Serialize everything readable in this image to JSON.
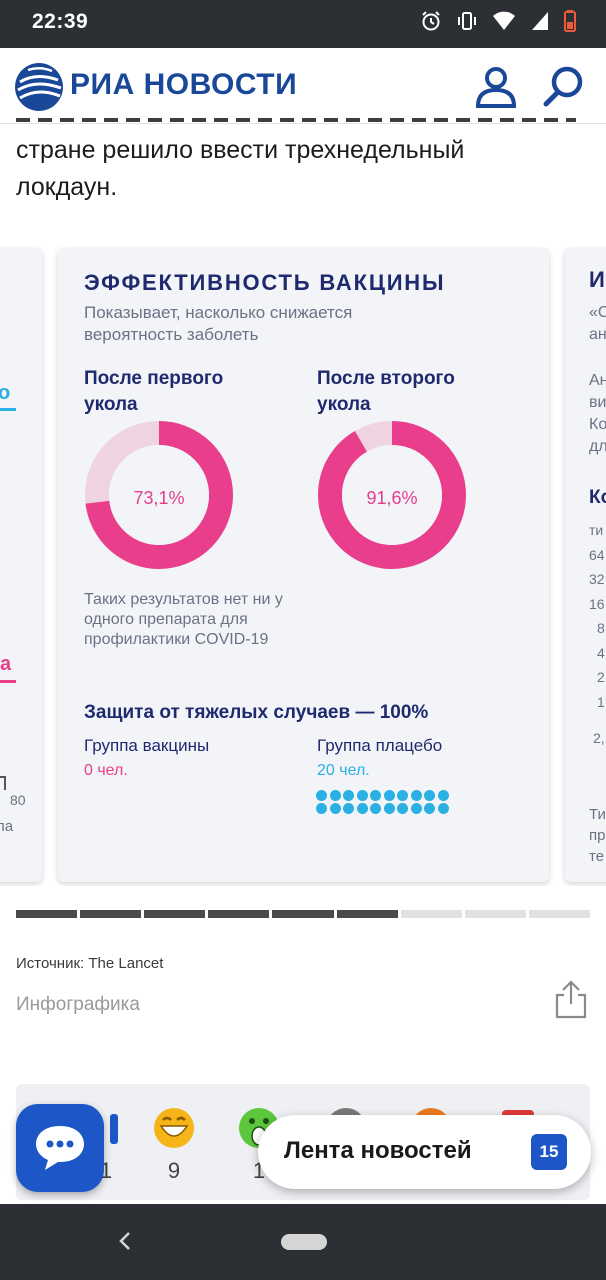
{
  "status_bar": {
    "time": "22:39",
    "icons": [
      "alarm-icon",
      "vibrate-icon",
      "wifi-icon",
      "signal-icon",
      "battery-icon"
    ]
  },
  "header": {
    "brand": "РИА НОВОСТИ",
    "icons": [
      "profile-icon",
      "search-icon"
    ],
    "brand_color": "#1a4899"
  },
  "article": {
    "line_1": "стране решило ввести трехнедельный",
    "line_2": "локдаун."
  },
  "infographic": {
    "title": "ЭФФЕКТИВНОСТЬ ВАКЦИНЫ",
    "subtitle": "Показывает, насколько снижается вероятность заболеть",
    "first_dose": {
      "label": "После первого укола",
      "value": "73,1%",
      "percent": 73.1
    },
    "second_dose": {
      "label": "После второго укола",
      "value": "91,6%",
      "percent": 91.6
    },
    "note": "Таких результатов нет ни у одного препарата для профилактики COVID-19",
    "protection_title": "Защита от тяжелых случаев — 100%",
    "vaccine_group": {
      "label": "Группа вакцины",
      "count": "0 чел."
    },
    "placebo_group": {
      "label": "Группа плацебо",
      "count": "20 чел.",
      "dots": 20
    },
    "colors": {
      "accent_pink": "#e83e8c",
      "light_pink": "#f0d3e1",
      "navy": "#1f2a6e",
      "cyan": "#2ab0e2"
    }
  },
  "left_card_fragments": {
    "link_fragment": "о",
    "pink_fragment": "а",
    "axis_fragment": "80",
    "label_fragment": "ла"
  },
  "right_card_fragments": {
    "title_fragment": "И",
    "lines_a": [
      "«С",
      "ан"
    ],
    "lines_b": [
      "Ан",
      "ви",
      "Ко",
      "дл"
    ],
    "heading_fragment": "Ко",
    "axis_labels": [
      "ти",
      "64",
      "32",
      "16",
      "8",
      "4",
      "2",
      "1",
      "2,"
    ],
    "footer_lines": [
      "Ти",
      "пр",
      "те"
    ]
  },
  "carousel": {
    "segments_total": 9,
    "segments_active": 6
  },
  "meta": {
    "source": "Источник: The Lancet",
    "category": "Инфографика"
  },
  "reactions": {
    "items": [
      {
        "icon": "thumbs-up-icon",
        "count": "1"
      },
      {
        "icon": "laugh-emoji-icon",
        "count": "9"
      },
      {
        "icon": "surprised-emoji-icon",
        "count": "1"
      },
      {
        "icon": "sad-emoji-icon",
        "count": ""
      },
      {
        "icon": "angry-emoji-icon",
        "count": ""
      },
      {
        "icon": "dislike-icon",
        "count": ""
      }
    ]
  },
  "feed_button": {
    "label": "Лента новостей",
    "badge": "15"
  },
  "chat_button": {
    "icon": "chat-bubble-icon"
  },
  "nav_bar": {
    "icons": [
      "back-icon",
      "home-pill-icon"
    ]
  }
}
